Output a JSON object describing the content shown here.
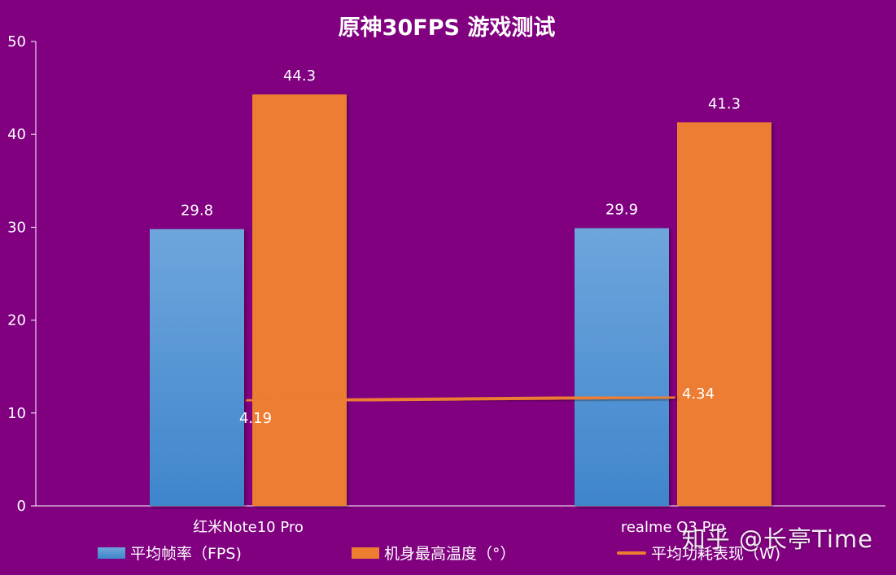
{
  "chart_data": {
    "type": "bar",
    "title": "原神30FPS  游戏测试",
    "categories": [
      "红米Note10 Pro",
      "realme Q3 Pro"
    ],
    "series": [
      {
        "name": "平均帧率（FPS)",
        "kind": "bar",
        "color": "#4a8fd4",
        "values": [
          29.8,
          29.9
        ]
      },
      {
        "name": "机身最高温度（°）",
        "kind": "bar",
        "color": "#ed7d31",
        "values": [
          44.3,
          41.3
        ]
      },
      {
        "name": "平均功耗表现（W)",
        "kind": "line",
        "color": "#ed7d31",
        "values": [
          4.19,
          4.34
        ]
      }
    ],
    "ylim": [
      0,
      50
    ],
    "yticks": [
      0,
      10,
      20,
      30,
      40,
      50
    ],
    "xlabel": "",
    "ylabel": "",
    "grid": false,
    "legend_position": "bottom"
  },
  "watermark": "知乎 @长亭Time"
}
